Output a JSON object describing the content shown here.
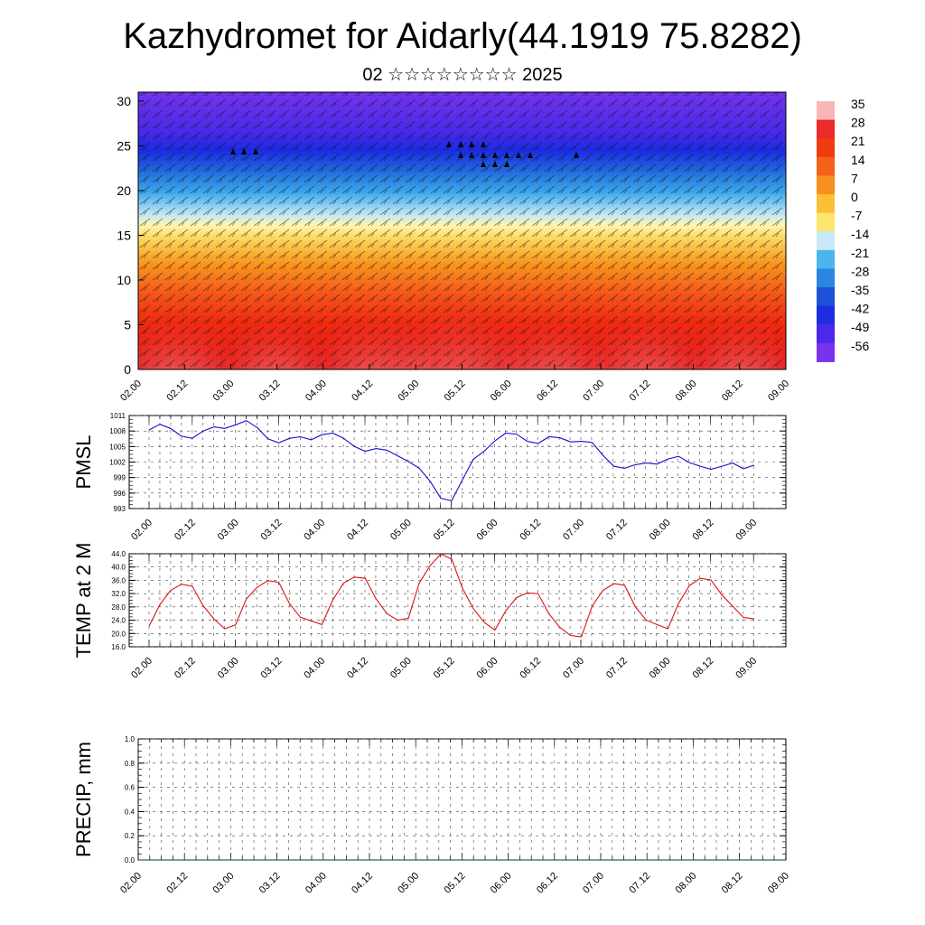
{
  "title": "Kazhydromet for Aidarly(44.1919 75.8282)",
  "subtitle": "02 ☆☆☆☆☆☆☆☆ 2025",
  "colors": {
    "pmsl_line": "#1010d0",
    "temp_line": "#dd1111",
    "grid": "#444444"
  },
  "chart_data": [
    {
      "type": "heatmap",
      "title": "",
      "x_tick_labels": [
        "02.00",
        "02.12",
        "03.00",
        "03.12",
        "04.00",
        "04.12",
        "05.00",
        "05.12",
        "06.00",
        "06.12",
        "07.00",
        "07.12",
        "08.00",
        "08.12",
        "09.00"
      ],
      "y_tick_labels": [
        "0",
        "5",
        "10",
        "15",
        "20",
        "25",
        "30"
      ],
      "ylim": [
        0,
        31
      ],
      "colorbar_labels": [
        "35",
        "28",
        "21",
        "14",
        "7",
        "0",
        "-7",
        "-14",
        "-21",
        "-28",
        "-35",
        "-42",
        "-49",
        "-56"
      ],
      "colorbar_colors": [
        "#f7b7b7",
        "#ec2a2a",
        "#f03a10",
        "#f5601a",
        "#f88f1e",
        "#fbbf38",
        "#fde56d",
        "#c9e9f6",
        "#4ab6ec",
        "#2a86e2",
        "#1d52d8",
        "#1d2ee0",
        "#4a2ae8",
        "#7a32ec"
      ]
    },
    {
      "type": "line",
      "ylabel": "PMSL",
      "ylim": [
        993,
        1011
      ],
      "y_tick_labels": [
        "1011",
        "1008",
        "1005",
        "1002",
        "999",
        "996",
        "993"
      ],
      "x_tick_labels": [
        "02.00",
        "02.12",
        "03.00",
        "03.12",
        "04.00",
        "04.12",
        "05.00",
        "05.12",
        "06.00",
        "06.12",
        "07.00",
        "07.12",
        "08.00",
        "08.12",
        "09.00"
      ],
      "grid": true,
      "series": [
        {
          "values": [
            1008.2,
            1009.3,
            1008.5,
            1007.0,
            1006.6,
            1008.0,
            1008.8,
            1008.5,
            1009.2,
            1010.0,
            1008.7,
            1006.5,
            1005.7,
            1006.6,
            1006.9,
            1006.3,
            1007.3,
            1007.6,
            1006.6,
            1005.0,
            1004.1,
            1004.6,
            1004.3,
            1003.2,
            1002.1,
            1000.8,
            998.3,
            995.0,
            994.5,
            998.6,
            1002.5,
            1004.1,
            1006.1,
            1007.6,
            1007.4,
            1006.0,
            1005.6,
            1006.9,
            1006.7,
            1005.9,
            1006.0,
            1005.8,
            1003.3,
            1001.2,
            1000.8,
            1001.5,
            1001.8,
            1001.6,
            1002.6,
            1003.1,
            1001.9,
            1001.2,
            1000.6,
            1001.2,
            1001.8,
            1000.7,
            1001.4
          ]
        }
      ]
    },
    {
      "type": "line",
      "ylabel": "TEMP at 2 M",
      "ylim": [
        16.0,
        44.0
      ],
      "y_tick_labels": [
        "44.0",
        "40.0",
        "36.0",
        "32.0",
        "28.0",
        "24.0",
        "20.0",
        "16.0"
      ],
      "x_tick_labels": [
        "02.00",
        "02.12",
        "03.00",
        "03.12",
        "04.00",
        "04.12",
        "05.00",
        "05.12",
        "06.00",
        "06.12",
        "07.00",
        "07.12",
        "08.00",
        "08.12",
        "09.00"
      ],
      "grid": true,
      "series": [
        {
          "values": [
            22.2,
            28.7,
            33.0,
            34.8,
            34.2,
            28.4,
            24.4,
            21.4,
            22.6,
            30.4,
            33.9,
            35.9,
            35.4,
            29.0,
            24.9,
            23.8,
            22.7,
            30.1,
            35.2,
            37.0,
            36.6,
            30.4,
            26.0,
            24.0,
            24.6,
            35.2,
            40.4,
            43.9,
            42.4,
            33.6,
            27.5,
            23.4,
            21.0,
            26.8,
            30.8,
            32.2,
            32.0,
            25.9,
            21.9,
            19.4,
            19.0,
            28.2,
            33.0,
            35.0,
            34.5,
            28.0,
            24.0,
            22.7,
            21.4,
            29.1,
            34.4,
            36.6,
            36.1,
            31.6,
            28.2,
            24.8,
            24.4
          ]
        }
      ]
    },
    {
      "type": "line",
      "ylabel": "PRECIP, mm",
      "ylim": [
        0.0,
        1.0
      ],
      "y_tick_labels": [
        "1.0",
        "0.8",
        "0.6",
        "0.4",
        "0.2",
        "0.0"
      ],
      "x_tick_labels": [
        "02.00",
        "02.12",
        "03.00",
        "03.12",
        "04.00",
        "04.12",
        "05.00",
        "05.12",
        "06.00",
        "06.12",
        "07.00",
        "07.12",
        "08.00",
        "08.12",
        "09.00"
      ],
      "grid": true,
      "series": [
        {
          "values": [
            0,
            0,
            0,
            0,
            0,
            0,
            0,
            0,
            0,
            0,
            0,
            0,
            0,
            0,
            0,
            0,
            0,
            0,
            0,
            0,
            0,
            0,
            0,
            0,
            0,
            0,
            0,
            0,
            0,
            0,
            0,
            0,
            0,
            0,
            0,
            0,
            0,
            0,
            0,
            0,
            0,
            0,
            0,
            0,
            0,
            0,
            0,
            0,
            0,
            0,
            0,
            0,
            0,
            0,
            0,
            0,
            0
          ]
        }
      ]
    }
  ]
}
